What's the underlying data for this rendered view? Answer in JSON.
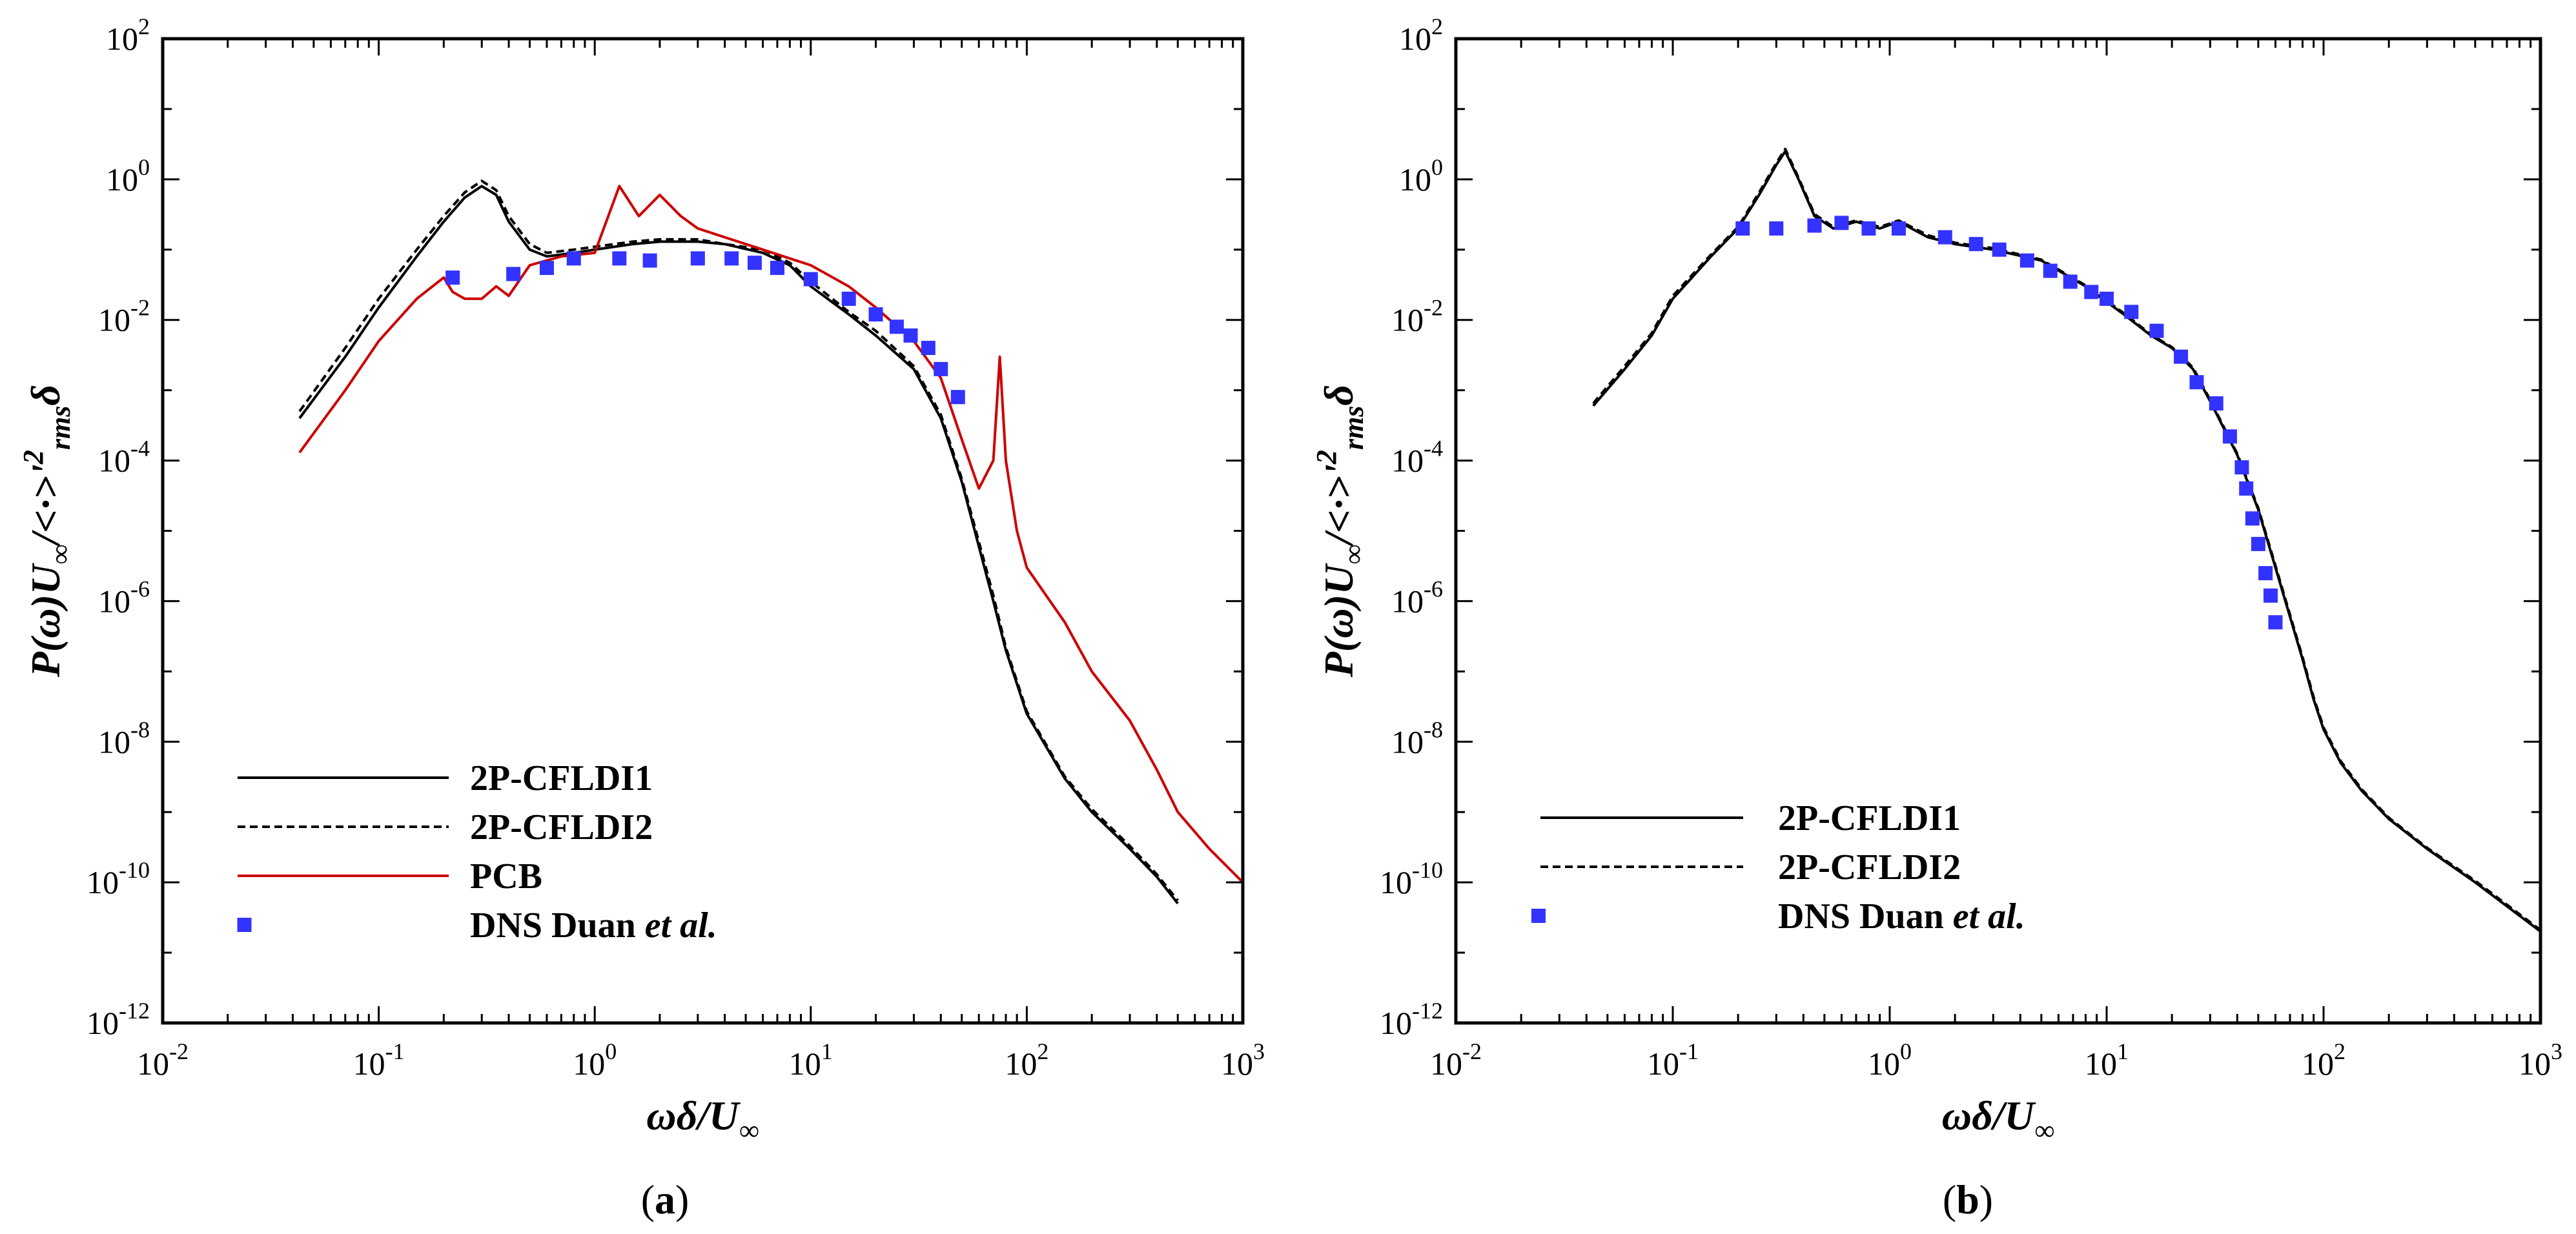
{
  "chart_data": [
    {
      "panel": "a",
      "panel_label": [
        "(",
        "a",
        ")"
      ],
      "type": "line",
      "xscale": "log",
      "yscale": "log",
      "xlim": [
        0.01,
        1000
      ],
      "ylim": [
        1e-12,
        100
      ],
      "x_ticks": [
        {
          "base": "10",
          "exp": "-2"
        },
        {
          "base": "10",
          "exp": "-1"
        },
        {
          "base": "10",
          "exp": "0"
        },
        {
          "base": "10",
          "exp": "1"
        },
        {
          "base": "10",
          "exp": "2"
        },
        {
          "base": "10",
          "exp": "3"
        }
      ],
      "y_ticks": [
        {
          "base": "10",
          "exp": "2"
        },
        {
          "base": "10",
          "exp": "0"
        },
        {
          "base": "10",
          "exp": "-2"
        },
        {
          "base": "10",
          "exp": "-4"
        },
        {
          "base": "10",
          "exp": "-6"
        },
        {
          "base": "10",
          "exp": "-8"
        },
        {
          "base": "10",
          "exp": "-10"
        },
        {
          "base": "10",
          "exp": "-12"
        }
      ],
      "xlabel": {
        "main": "ωδ/U",
        "sub": "∞"
      },
      "ylabel": {
        "p1": "P(ω)U",
        "s1": "∞",
        "p2": "/<·>'",
        "sup": "2",
        "s2": "rms",
        "p3": "δ"
      },
      "legend_position": "bottom-left",
      "series": [
        {
          "name": "2P-CFLDI1",
          "legend": [
            "2P-CFLDI1"
          ],
          "style": "solid",
          "color": "#000000",
          "x": [
            0.043,
            0.07,
            0.1,
            0.15,
            0.2,
            0.25,
            0.3,
            0.35,
            0.4,
            0.5,
            0.6,
            0.8,
            1.0,
            1.5,
            2,
            3,
            4,
            6,
            8,
            10,
            15,
            20,
            30,
            40,
            50,
            60,
            70,
            80,
            100,
            150,
            200,
            300,
            400,
            500
          ],
          "y": [
            0.0004,
            0.003,
            0.015,
            0.08,
            0.25,
            0.55,
            0.8,
            0.6,
            0.25,
            0.1,
            0.08,
            0.09,
            0.1,
            0.12,
            0.13,
            0.13,
            0.12,
            0.09,
            0.06,
            0.03,
            0.012,
            0.006,
            0.002,
            0.0004,
            5e-05,
            6e-06,
            1e-06,
            2e-07,
            2.5e-08,
            3e-09,
            1e-09,
            3e-10,
            1.2e-10,
            5e-11
          ]
        },
        {
          "name": "2P-CFLDI2",
          "legend": [
            "2P-CFLDI2"
          ],
          "style": "dashed",
          "color": "#000000",
          "x": [
            0.043,
            0.07,
            0.1,
            0.15,
            0.2,
            0.25,
            0.3,
            0.35,
            0.4,
            0.5,
            0.6,
            0.8,
            1.0,
            1.5,
            2,
            3,
            4,
            6,
            8,
            10,
            15,
            20,
            30,
            40,
            50,
            60,
            70,
            80,
            100,
            150,
            200,
            300,
            400,
            500
          ],
          "y": [
            0.0005,
            0.004,
            0.02,
            0.1,
            0.3,
            0.65,
            0.95,
            0.7,
            0.3,
            0.12,
            0.09,
            0.1,
            0.11,
            0.13,
            0.14,
            0.14,
            0.12,
            0.1,
            0.065,
            0.035,
            0.013,
            0.007,
            0.0022,
            0.00045,
            5.5e-05,
            7e-06,
            1.2e-06,
            2.2e-07,
            2.7e-08,
            3.2e-09,
            1.1e-09,
            3.3e-10,
            1.3e-10,
            5.5e-11
          ]
        },
        {
          "name": "PCB",
          "legend": [
            "PCB"
          ],
          "style": "solid",
          "color": "#cc0000",
          "x": [
            0.043,
            0.07,
            0.1,
            0.15,
            0.2,
            0.22,
            0.25,
            0.3,
            0.35,
            0.4,
            0.5,
            0.7,
            1,
            1.3,
            1.6,
            2,
            2.5,
            3,
            4,
            6,
            10,
            15,
            20,
            30,
            40,
            50,
            60,
            70,
            75,
            80,
            90,
            100,
            150,
            200,
            300,
            400,
            500,
            700,
            1000
          ],
          "y": [
            0.00013,
            0.001,
            0.005,
            0.02,
            0.04,
            0.025,
            0.02,
            0.02,
            0.03,
            0.022,
            0.06,
            0.08,
            0.09,
            0.8,
            0.3,
            0.6,
            0.3,
            0.2,
            0.15,
            0.1,
            0.06,
            0.03,
            0.015,
            0.005,
            0.0015,
            0.0002,
            4e-05,
            0.0001,
            0.003,
            0.0001,
            1e-05,
            3e-06,
            5e-07,
            1e-07,
            2e-08,
            4e-09,
            1e-09,
            3e-10,
            1e-10
          ]
        },
        {
          "name": "DNS Duan et al.",
          "legend": [
            "DNS Duan ",
            "et al."
          ],
          "style": "markers",
          "color": "#3333ff",
          "x": [
            0.22,
            0.42,
            0.6,
            0.8,
            1.3,
            1.8,
            3.0,
            4.3,
            5.5,
            7.0,
            10,
            15,
            20,
            25,
            29,
            35,
            40,
            48
          ],
          "y": [
            0.04,
            0.045,
            0.055,
            0.075,
            0.075,
            0.07,
            0.075,
            0.075,
            0.065,
            0.055,
            0.038,
            0.02,
            0.012,
            0.008,
            0.006,
            0.004,
            0.002,
            0.0008
          ]
        }
      ]
    },
    {
      "panel": "b",
      "panel_label": [
        "(",
        "b",
        ")"
      ],
      "type": "line",
      "xscale": "log",
      "yscale": "log",
      "xlim": [
        0.01,
        1000
      ],
      "ylim": [
        1e-12,
        100
      ],
      "x_ticks": [
        {
          "base": "10",
          "exp": "-2"
        },
        {
          "base": "10",
          "exp": "-1"
        },
        {
          "base": "10",
          "exp": "0"
        },
        {
          "base": "10",
          "exp": "1"
        },
        {
          "base": "10",
          "exp": "2"
        },
        {
          "base": "10",
          "exp": "3"
        }
      ],
      "y_ticks": [
        {
          "base": "10",
          "exp": "2"
        },
        {
          "base": "10",
          "exp": "0"
        },
        {
          "base": "10",
          "exp": "-2"
        },
        {
          "base": "10",
          "exp": "-4"
        },
        {
          "base": "10",
          "exp": "-6"
        },
        {
          "base": "10",
          "exp": "-8"
        },
        {
          "base": "10",
          "exp": "-10"
        },
        {
          "base": "10",
          "exp": "-12"
        }
      ],
      "xlabel": {
        "main": "ωδ/U",
        "sub": "∞"
      },
      "ylabel": {
        "p1": "P(ω)U",
        "s1": "∞",
        "p2": "/<·>'",
        "sup": "2",
        "s2": "rms",
        "p3": "δ"
      },
      "legend_position": "bottom-left",
      "series": [
        {
          "name": "2P-CFLDI1",
          "legend": [
            "2P-CFLDI1"
          ],
          "style": "solid",
          "color": "#000000",
          "x": [
            0.043,
            0.06,
            0.08,
            0.1,
            0.15,
            0.2,
            0.25,
            0.3,
            0.33,
            0.38,
            0.45,
            0.55,
            0.7,
            0.9,
            1.1,
            1.5,
            2,
            3,
            5,
            8,
            12,
            16,
            20,
            25,
            30,
            40,
            50,
            60,
            70,
            80,
            90,
            100,
            120,
            150,
            200,
            300,
            500,
            1000
          ],
          "y": [
            0.0006,
            0.002,
            0.006,
            0.02,
            0.08,
            0.2,
            0.6,
            1.6,
            2.5,
            1.0,
            0.3,
            0.2,
            0.25,
            0.2,
            0.25,
            0.15,
            0.12,
            0.1,
            0.07,
            0.03,
            0.012,
            0.006,
            0.004,
            0.002,
            0.0007,
            0.00012,
            2e-05,
            3e-06,
            6e-07,
            1.5e-07,
            4e-08,
            1.5e-08,
            5e-09,
            2e-09,
            8e-10,
            3e-10,
            1e-10,
            2e-11
          ]
        },
        {
          "name": "2P-CFLDI2",
          "legend": [
            "2P-CFLDI2"
          ],
          "style": "dashed",
          "color": "#000000",
          "x": [
            0.043,
            0.06,
            0.08,
            0.1,
            0.15,
            0.2,
            0.25,
            0.3,
            0.33,
            0.38,
            0.45,
            0.55,
            0.7,
            0.9,
            1.1,
            1.5,
            2,
            3,
            5,
            8,
            12,
            16,
            20,
            25,
            30,
            40,
            50,
            60,
            70,
            80,
            90,
            100,
            120,
            150,
            200,
            300,
            500,
            1000
          ],
          "y": [
            0.00065,
            0.0022,
            0.0065,
            0.022,
            0.085,
            0.21,
            0.65,
            1.7,
            2.7,
            1.05,
            0.32,
            0.21,
            0.26,
            0.21,
            0.26,
            0.16,
            0.125,
            0.105,
            0.072,
            0.031,
            0.0125,
            0.0062,
            0.0041,
            0.0021,
            0.00073,
            0.000125,
            2.1e-05,
            3.2e-06,
            6.4e-07,
            1.6e-07,
            4.3e-08,
            1.6e-08,
            5.3e-09,
            2.1e-09,
            8.3e-10,
            3.1e-10,
            1.05e-10,
            2.1e-11
          ]
        },
        {
          "name": "DNS Duan et al.",
          "legend": [
            "DNS Duan ",
            "et al."
          ],
          "style": "markers",
          "color": "#3333ff",
          "x": [
            0.21,
            0.3,
            0.45,
            0.6,
            0.8,
            1.1,
            1.8,
            2.5,
            3.2,
            4.3,
            5.5,
            6.8,
            8.5,
            10,
            13,
            17,
            22,
            26,
            32,
            37,
            42,
            44,
            47,
            50,
            54,
            57,
            60
          ],
          "y": [
            0.2,
            0.2,
            0.22,
            0.24,
            0.2,
            0.2,
            0.15,
            0.12,
            0.1,
            0.07,
            0.05,
            0.035,
            0.025,
            0.02,
            0.013,
            0.007,
            0.003,
            0.0013,
            0.00065,
            0.00022,
            8e-05,
            4e-05,
            1.5e-05,
            6.5e-06,
            2.5e-06,
            1.2e-06,
            5e-07
          ]
        }
      ]
    }
  ]
}
